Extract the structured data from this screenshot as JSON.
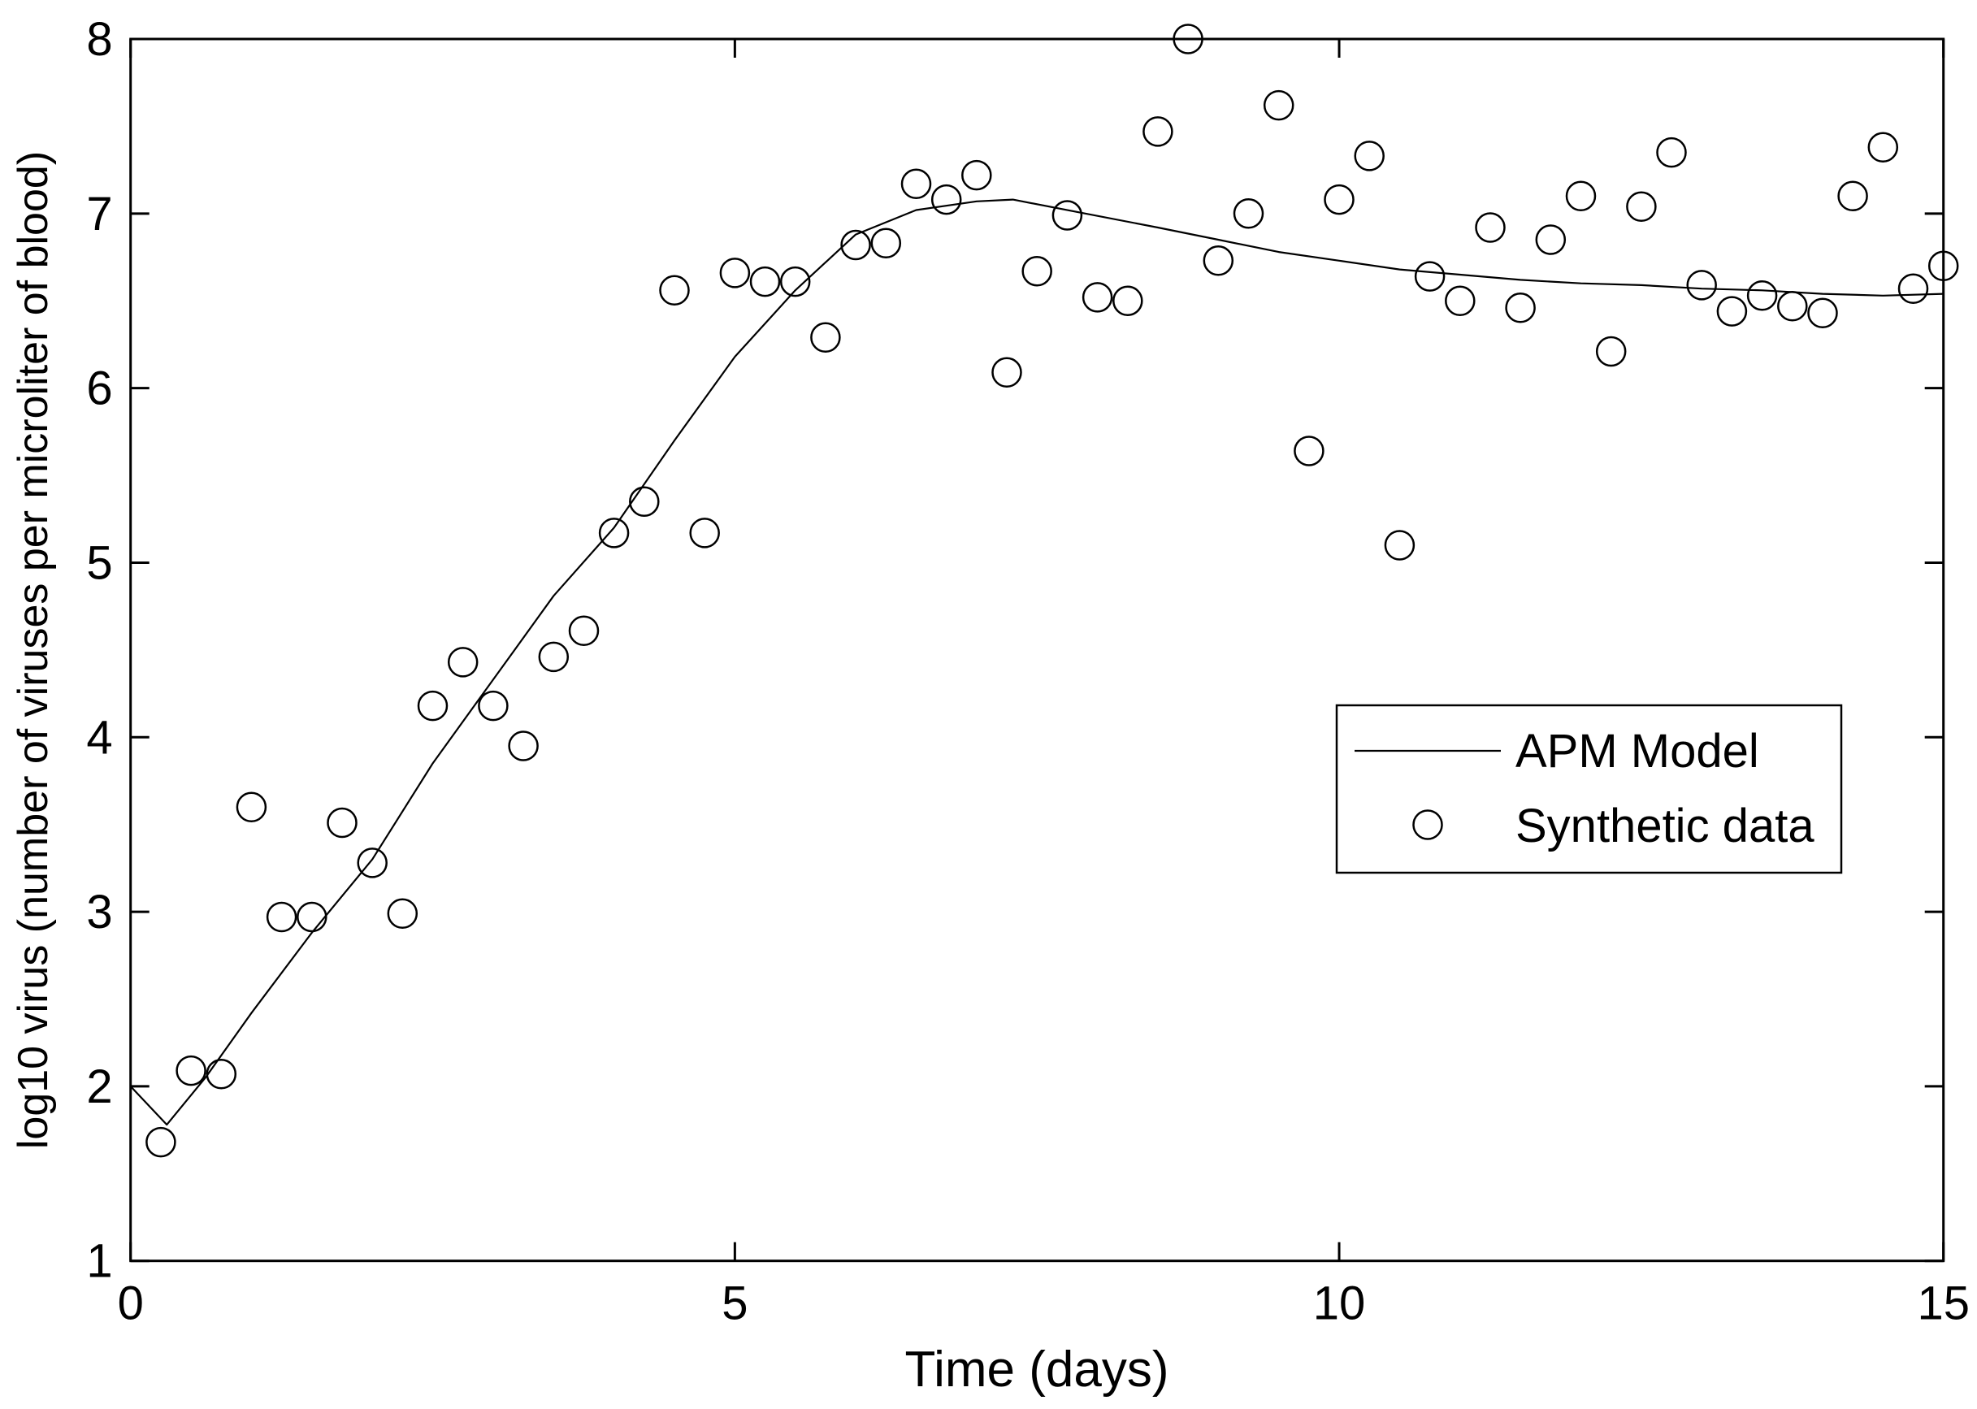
{
  "chart_data": {
    "type": "scatter",
    "title": "",
    "xlabel": "Time (days)",
    "ylabel": "log10 virus (number of viruses per microliter of blood)",
    "xlim": [
      0,
      15
    ],
    "ylim": [
      1,
      8
    ],
    "xticks": [
      0,
      5,
      10,
      15
    ],
    "yticks": [
      1,
      2,
      3,
      4,
      5,
      6,
      7,
      8
    ],
    "grid": false,
    "legend_position": "middle-right",
    "series": [
      {
        "name": "APM Model",
        "type": "line",
        "color": "#000000",
        "points": [
          [
            0.0,
            2.0
          ],
          [
            0.3,
            1.78
          ],
          [
            0.62,
            2.05
          ],
          [
            1.0,
            2.42
          ],
          [
            1.5,
            2.88
          ],
          [
            2.0,
            3.3
          ],
          [
            2.5,
            3.85
          ],
          [
            3.0,
            4.33
          ],
          [
            3.5,
            4.81
          ],
          [
            4.0,
            5.2
          ],
          [
            4.5,
            5.7
          ],
          [
            5.0,
            6.18
          ],
          [
            5.5,
            6.56
          ],
          [
            6.0,
            6.88
          ],
          [
            6.5,
            7.02
          ],
          [
            7.0,
            7.07
          ],
          [
            7.3,
            7.08
          ],
          [
            7.9,
            7.0
          ],
          [
            8.5,
            6.92
          ],
          [
            9.0,
            6.85
          ],
          [
            9.5,
            6.78
          ],
          [
            10.0,
            6.73
          ],
          [
            10.5,
            6.68
          ],
          [
            11.0,
            6.65
          ],
          [
            11.5,
            6.62
          ],
          [
            12.0,
            6.6
          ],
          [
            12.5,
            6.59
          ],
          [
            13.0,
            6.57
          ],
          [
            13.5,
            6.56
          ],
          [
            14.0,
            6.54
          ],
          [
            14.5,
            6.53
          ],
          [
            15.0,
            6.54
          ]
        ]
      },
      {
        "name": "Synthetic data",
        "type": "scatter",
        "marker": "circle",
        "color": "#000000",
        "points": [
          [
            0.25,
            1.68
          ],
          [
            0.5,
            2.09
          ],
          [
            0.75,
            2.07
          ],
          [
            1.0,
            3.6
          ],
          [
            1.25,
            2.97
          ],
          [
            1.5,
            2.97
          ],
          [
            1.75,
            3.51
          ],
          [
            2.0,
            3.28
          ],
          [
            2.25,
            2.99
          ],
          [
            2.5,
            4.18
          ],
          [
            2.75,
            4.43
          ],
          [
            3.0,
            4.18
          ],
          [
            3.25,
            3.95
          ],
          [
            3.5,
            4.46
          ],
          [
            3.75,
            4.61
          ],
          [
            4.0,
            5.17
          ],
          [
            4.25,
            5.35
          ],
          [
            4.5,
            6.56
          ],
          [
            4.75,
            5.17
          ],
          [
            5.0,
            6.66
          ],
          [
            5.25,
            6.61
          ],
          [
            5.5,
            6.61
          ],
          [
            5.75,
            6.29
          ],
          [
            6.0,
            6.82
          ],
          [
            6.25,
            6.83
          ],
          [
            6.5,
            7.17
          ],
          [
            6.75,
            7.08
          ],
          [
            7.0,
            7.22
          ],
          [
            7.25,
            6.09
          ],
          [
            7.5,
            6.67
          ],
          [
            7.75,
            6.99
          ],
          [
            8.0,
            6.52
          ],
          [
            8.25,
            6.5
          ],
          [
            8.5,
            7.47
          ],
          [
            8.75,
            8.0
          ],
          [
            9.0,
            6.73
          ],
          [
            9.25,
            7.0
          ],
          [
            9.5,
            7.62
          ],
          [
            9.75,
            5.64
          ],
          [
            10.0,
            7.08
          ],
          [
            10.25,
            7.33
          ],
          [
            10.5,
            5.1
          ],
          [
            10.75,
            6.64
          ],
          [
            11.0,
            6.5
          ],
          [
            11.25,
            6.92
          ],
          [
            11.5,
            6.46
          ],
          [
            11.75,
            6.85
          ],
          [
            12.0,
            7.1
          ],
          [
            12.25,
            6.21
          ],
          [
            12.5,
            7.04
          ],
          [
            12.75,
            7.35
          ],
          [
            13.0,
            6.59
          ],
          [
            13.25,
            6.44
          ],
          [
            13.5,
            6.53
          ],
          [
            13.75,
            6.47
          ],
          [
            14.0,
            6.43
          ],
          [
            14.25,
            7.1
          ],
          [
            14.5,
            7.38
          ],
          [
            14.75,
            6.57
          ],
          [
            15.0,
            6.7
          ]
        ]
      }
    ]
  },
  "legend": {
    "items": [
      {
        "label": "APM Model",
        "marker": "line"
      },
      {
        "label": "Synthetic data",
        "marker": "circle"
      }
    ]
  },
  "colors": {
    "foreground": "#000000",
    "background": "#ffffff"
  }
}
